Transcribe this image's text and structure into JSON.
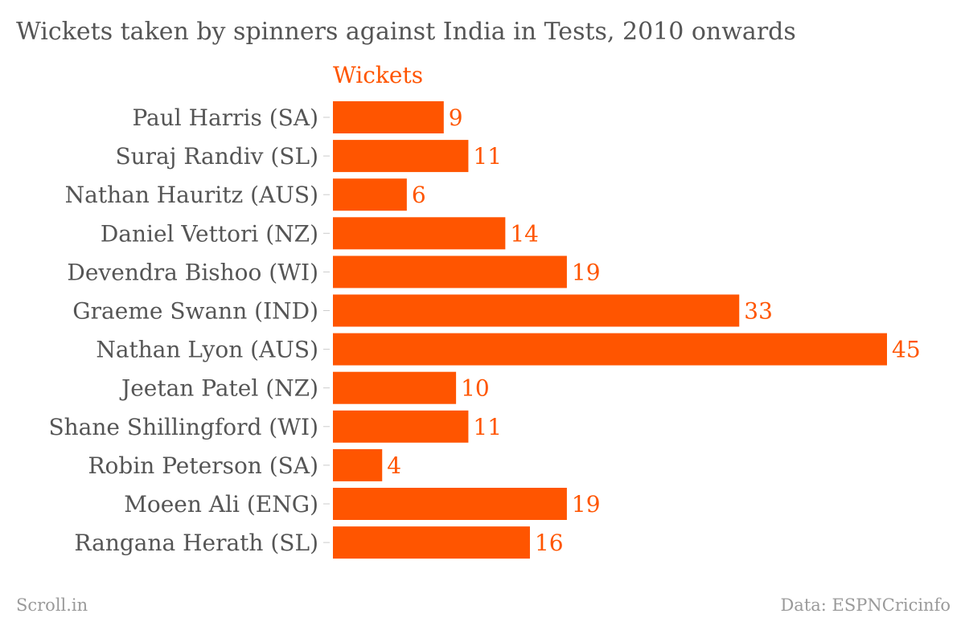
{
  "title": "Wickets taken by spinners against India in Tests, 2010 onwards",
  "footer": {
    "source_left": "Scroll.in",
    "source_right": "Data: ESPNCricinfo"
  },
  "chart_data": {
    "type": "bar",
    "orientation": "horizontal",
    "title": "Wickets taken by spinners against India in Tests, 2010 onwards",
    "series": [
      {
        "name": "Wickets",
        "values": [
          9,
          11,
          6,
          14,
          19,
          33,
          45,
          10,
          11,
          4,
          19,
          16
        ]
      }
    ],
    "categories": [
      "Paul Harris (SA)",
      "Suraj Randiv (SL)",
      "Nathan Hauritz (AUS)",
      "Daniel Vettori (NZ)",
      "Devendra Bishoo (WI)",
      "Graeme Swann (IND)",
      "Nathan Lyon (AUS)",
      "Jeetan Patel (NZ)",
      "Shane Shillingford (WI)",
      "Robin Peterson (SA)",
      "Moeen Ali (ENG)",
      "Rangana Herath (SL)"
    ],
    "xlim": [
      0,
      45
    ],
    "grid": false,
    "bar_color": "#ff5500"
  }
}
